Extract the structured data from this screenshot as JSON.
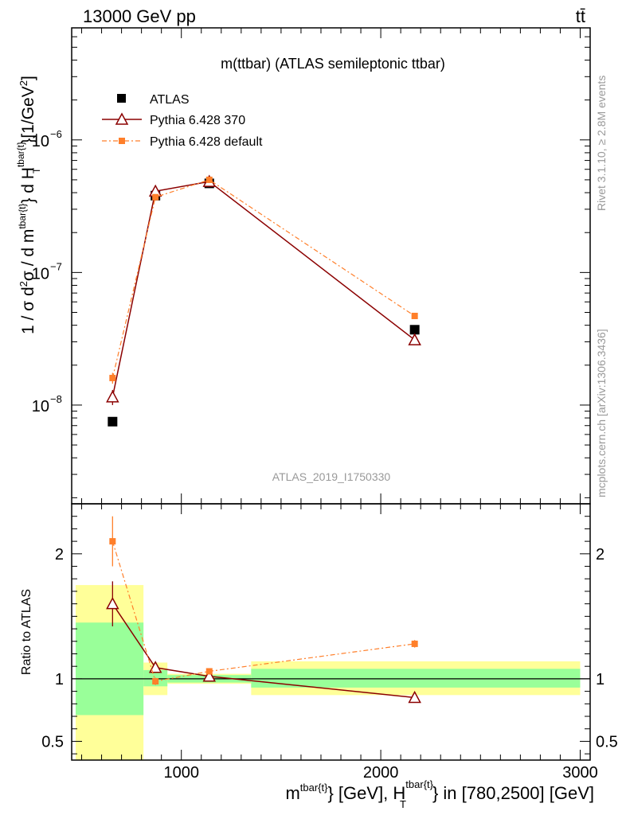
{
  "header": {
    "left": "13000 GeV pp",
    "right": "tt̄"
  },
  "side_labels": {
    "rivet": "Rivet 3.1.10, ≥ 2.8M events",
    "mcplots": "mcplots.cern.ch [arXiv:1306.3436]"
  },
  "colors": {
    "atlas": "#000000",
    "pythia370": "#8b0000",
    "pythia_default": "#ff7f2a",
    "band_inner": "#99ff99",
    "band_outer": "#ffff99"
  },
  "chart_data": [
    {
      "type": "scatter",
      "title": "m(ttbar) (ATLAS semileptonic ttbar)",
      "watermark": "ATLAS_2019_I1750330",
      "ylabel": "1 / σ d²σ / d m^{tbar{t}} d H_T^{tbar{t}} [1/GeV²]",
      "yscale": "log",
      "xlim": [
        450,
        3050
      ],
      "ylim": [
        1.8e-09,
        7e-06
      ],
      "y_ticks": [
        {
          "value": 1e-08,
          "label": "10",
          "exp": "−8"
        },
        {
          "value": 1e-07,
          "label": "10",
          "exp": "−7"
        },
        {
          "value": 1e-06,
          "label": "10",
          "exp": "−6"
        }
      ],
      "legend": {
        "placement": "top-left",
        "entries": [
          {
            "label": "ATLAS",
            "series": "atlas"
          },
          {
            "label": "Pythia 6.428 370",
            "series": "pythia370"
          },
          {
            "label": "Pythia 6.428 default",
            "series": "pythia_default"
          }
        ]
      },
      "series": [
        {
          "id": "atlas",
          "name": "ATLAS",
          "marker": "square",
          "x": [
            655,
            870,
            1140,
            2170
          ],
          "y": [
            7.5e-09,
            3.8e-07,
            4.7e-07,
            3.7e-08
          ]
        },
        {
          "id": "pythia370",
          "name": "Pythia 6.428 370",
          "marker": "triangle-open",
          "line": "solid",
          "x": [
            655,
            870,
            1140,
            2170
          ],
          "y": [
            1.15e-08,
            4.1e-07,
            4.85e-07,
            3.1e-08
          ],
          "err": [
            1.5e-09,
            2e-08,
            2e-08,
            1e-09
          ]
        },
        {
          "id": "pythia_default",
          "name": "Pythia 6.428 default",
          "marker": "square-small",
          "line": "dashdot",
          "x": [
            655,
            870,
            1140,
            2170
          ],
          "y": [
            1.6e-08,
            3.7e-07,
            5e-07,
            4.7e-08
          ],
          "err": [
            1.5e-09,
            1.5e-08,
            1.5e-08,
            1e-09
          ]
        }
      ]
    },
    {
      "type": "scatter",
      "ylabel": "Ratio to ATLAS",
      "xlabel": "m^{tbar{t}} [GeV], H_T^{tbar{t}} in [780,2500] [GeV]",
      "xlim": [
        450,
        3050
      ],
      "ylim": [
        0.35,
        2.4
      ],
      "x_ticks": [
        1000,
        2000,
        3000
      ],
      "y_ticks": [
        0.5,
        1,
        2
      ],
      "bands": [
        {
          "x": [
            470,
            810
          ],
          "inner": [
            0.71,
            1.45
          ],
          "outer": [
            0.35,
            1.75
          ]
        },
        {
          "x": [
            810,
            930
          ],
          "inner": [
            0.94,
            1.07
          ],
          "outer": [
            0.87,
            1.13
          ]
        },
        {
          "x": [
            930,
            1350
          ],
          "inner": [
            0.97,
            1.03
          ],
          "outer": [
            0.96,
            1.04
          ]
        },
        {
          "x": [
            1350,
            3000
          ],
          "inner": [
            0.93,
            1.08
          ],
          "outer": [
            0.87,
            1.14
          ]
        }
      ],
      "series": [
        {
          "id": "pythia370",
          "x": [
            655,
            870,
            1140,
            2170
          ],
          "y": [
            1.6,
            1.09,
            1.02,
            0.85
          ],
          "err": [
            0.18,
            0.04,
            0.02,
            0.02
          ]
        },
        {
          "id": "pythia_default",
          "x": [
            655,
            870,
            1140,
            2170
          ],
          "y": [
            2.1,
            0.98,
            1.06,
            1.28
          ],
          "err": [
            0.2,
            0.03,
            0.02,
            0.03
          ]
        }
      ]
    }
  ]
}
